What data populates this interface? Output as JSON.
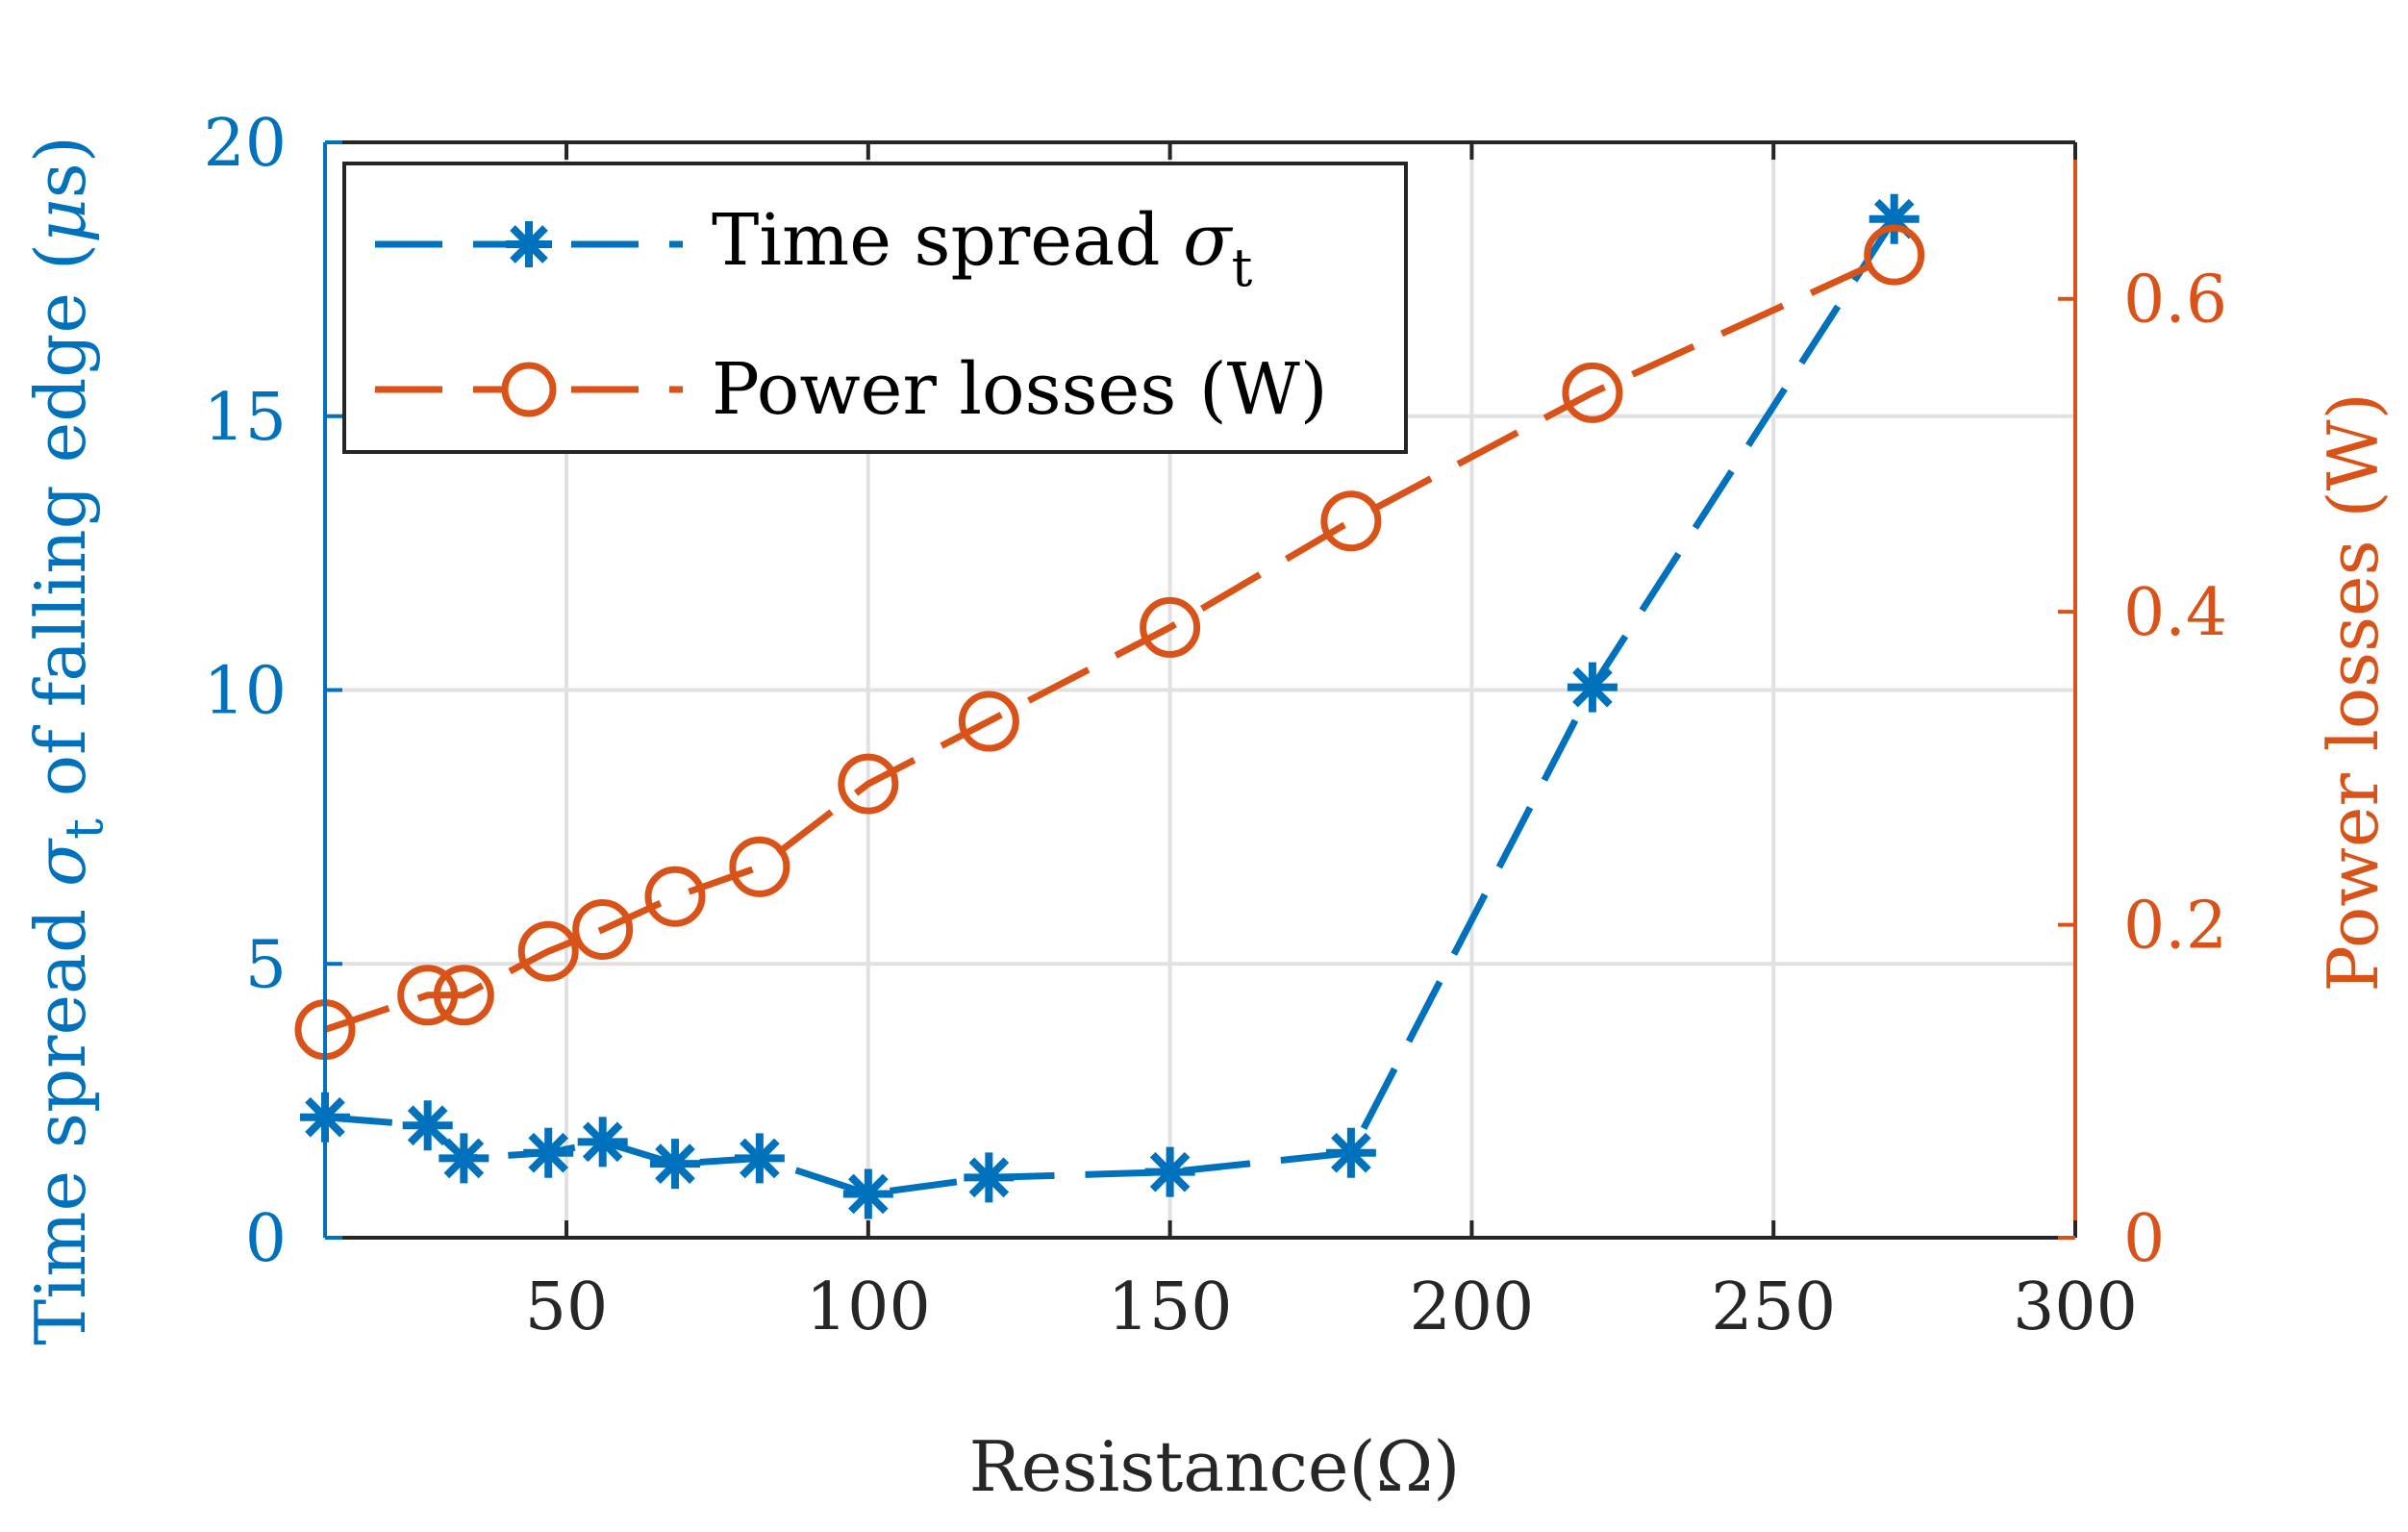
{
  "chart_data": {
    "type": "line",
    "xlabel": "Resistance(Ω)",
    "xlim": [
      10,
      300
    ],
    "x_ticks": [
      50,
      100,
      150,
      200,
      250,
      300
    ],
    "x_tick_labels": [
      "50",
      "100",
      "150",
      "200",
      "250",
      "300"
    ],
    "grid": true,
    "legend_position": "top-left",
    "y_left": {
      "label_main": "Time spread ",
      "label_symbol": "σ",
      "label_subscript": "t",
      "label_tail": " of falling edge (",
      "label_unit_symbol": "μ",
      "label_unit": "s)",
      "ylim": [
        0,
        20
      ],
      "ticks": [
        0,
        5,
        10,
        15,
        20
      ],
      "tick_labels": [
        "0",
        "5",
        "10",
        "15",
        "20"
      ],
      "color": "#0072BD"
    },
    "y_right": {
      "label": "Power losses (W)",
      "ylim": [
        0,
        0.7
      ],
      "ticks": [
        0,
        0.2,
        0.4,
        0.6
      ],
      "tick_labels": [
        "0",
        "0.2",
        "0.4",
        "0.6"
      ],
      "color": "#D95319"
    },
    "series": [
      {
        "name": "Time spread σt",
        "legend_main": "Time spread ",
        "legend_symbol": "σ",
        "legend_subscript": "t",
        "axis": "left",
        "marker": "asterisk",
        "line_style": "dashed",
        "color": "#0072BD",
        "x": [
          10,
          27,
          33,
          47,
          56,
          68,
          82,
          100,
          120,
          150,
          180,
          220,
          270
        ],
        "y": [
          2.2,
          2.05,
          1.45,
          1.55,
          1.75,
          1.35,
          1.45,
          0.8,
          1.1,
          1.2,
          1.55,
          10.05,
          18.6
        ]
      },
      {
        "name": "Power losses (W)",
        "legend_label": "Power losses (W)",
        "axis": "right",
        "marker": "circle",
        "line_style": "dashed",
        "color": "#D95319",
        "x": [
          10,
          27,
          33,
          47,
          56,
          68,
          82,
          100,
          120,
          150,
          180,
          220,
          270
        ],
        "y": [
          0.133,
          0.155,
          0.155,
          0.183,
          0.197,
          0.218,
          0.237,
          0.29,
          0.33,
          0.39,
          0.458,
          0.54,
          0.628
        ]
      }
    ]
  }
}
